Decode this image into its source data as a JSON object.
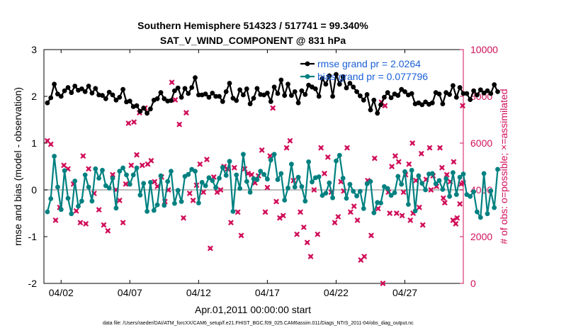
{
  "chart_data": {
    "type": "line",
    "title_line1": "Southern Hemisphere 514323 / 517741 = 99.340%",
    "title_line2": "SAT_V_WIND_COMPONENT @ 831 hPa",
    "xlabel": "Apr.01,2011 00:00:00 start",
    "ylabel_left": "rmse and bias (model - observation)",
    "ylabel_right": "# of obs: o=possible; ×=assimilated",
    "footer": "data file: /Users/raeder/DAI/ATM_forcXX/CAM6_setup/f.e21.FHIST_BGC.f09_025.CAM6assim.011/Diags_NTrS_2011-04/obs_diag_output.nc",
    "x_ticks": [
      "04/02",
      "04/07",
      "04/12",
      "04/17",
      "04/22",
      "04/27"
    ],
    "x_tick_days": [
      2,
      7,
      12,
      17,
      22,
      27
    ],
    "xlim_days": [
      0.75,
      31.25
    ],
    "ylim_left": [
      -2,
      3
    ],
    "yticks_left": [
      "3",
      "2",
      "1",
      "0",
      "-1",
      "-2"
    ],
    "yticks_left_values": [
      3,
      2,
      1,
      0,
      -1,
      -2
    ],
    "ylim_right": [
      0,
      10000
    ],
    "yticks_right": [
      "10000",
      "8000",
      "6000",
      "4000",
      "2000",
      "0"
    ],
    "yticks_right_values": [
      10000,
      8000,
      6000,
      4000,
      2000,
      0
    ],
    "step_days": 0.25,
    "start_day": 1.0,
    "colors": {
      "rmse": "#000000",
      "bias": "#008080",
      "obs": "#d0105a",
      "zero": "#bbbbbb",
      "legend_text": "#1a5fd6"
    },
    "legend": [
      {
        "name": "rmse grand pr = 2.0264",
        "series": "rmse"
      },
      {
        "name": "bias grand pr = 0.077796",
        "series": "bias"
      }
    ],
    "series": [
      {
        "name": "rmse",
        "values": [
          1.86,
          1.97,
          2.26,
          2.05,
          2.0,
          2.12,
          2.19,
          2.08,
          2.22,
          2.13,
          2.16,
          2.1,
          2.22,
          2.07,
          2.17,
          2.03,
          2.02,
          1.95,
          2.09,
          2.03,
          1.92,
          1.98,
          2.15,
          1.88,
          1.9,
          1.78,
          1.8,
          1.68,
          1.75,
          1.64,
          1.73,
          1.92,
          1.95,
          2.08,
          1.95,
          1.9,
          1.91,
          2.12,
          2.18,
          1.98,
          2.17,
          2.06,
          2.19,
          2.4,
          2.03,
          2.03,
          2.05,
          1.98,
          2.07,
          2.0,
          2.0,
          1.89,
          2.1,
          2.28,
          1.96,
          1.91,
          2.14,
          2.03,
          2.16,
          1.84,
          1.96,
          2.17,
          2.04,
          2.03,
          2.07,
          1.89,
          2.2,
          2.06,
          2.35,
          2.02,
          2.26,
          2.02,
          2.1,
          1.86,
          2.12,
          2.04,
          2.24,
          2.2,
          2.16,
          2.0,
          2.38,
          2.26,
          2.44,
          2.0,
          2.47,
          2.26,
          2.42,
          2.18,
          2.28,
          2.2,
          2.1,
          2.01,
          1.92,
          2.04,
          1.71,
          1.92,
          1.64,
          1.82,
          1.98,
          2.08,
          1.97,
          2.05,
          2.02,
          2.15,
          2.1,
          2.03,
          2.06,
          1.84,
          1.86,
          1.82,
          1.88,
          1.83,
          1.86,
          2.08,
          2.05,
          1.84,
          2.08,
          2.04,
          2.23,
          1.98,
          2.19,
          2.06,
          2.06,
          1.93,
          2.12,
          2.03,
          2.14,
          2.07,
          2.12,
          2.06,
          2.25,
          2.1
        ]
      },
      {
        "name": "bias",
        "values": [
          -0.47,
          -0.19,
          0.72,
          0.06,
          -0.42,
          0.41,
          -0.18,
          -0.51,
          0.19,
          -0.35,
          -0.24,
          0.32,
          0.06,
          -0.24,
          0.45,
          0.25,
          0.42,
          0.09,
          0.04,
          0.25,
          -0.39,
          0.4,
          0.47,
          0.32,
          0.12,
          0.32,
          0.47,
          -0.11,
          0.14,
          -0.46,
          0.16,
          -0.44,
          -0.32,
          0.3,
          -0.33,
          0.18,
          0.4,
          -0.29,
          -0.01,
          -0.25,
          0.29,
          0.33,
          0.44,
          0.4,
          -0.28,
          0.16,
          0.09,
          0.26,
          0.2,
          0.05,
          0.25,
          0.48,
          0.31,
          0.61,
          -0.46,
          0.32,
          0.03,
          0.76,
          0.18,
          -0.05,
          0.24,
          0.22,
          0.4,
          0.33,
          0.23,
          0.64,
          0.76,
          0.22,
          0.35,
          -0.22,
          0.04,
          0.55,
          0.06,
          0.27,
          0.07,
          -0.24,
          0.6,
          0.17,
          0.26,
          0.28,
          -0.12,
          -0.07,
          0.15,
          -0.17,
          0.62,
          0.74,
          0.25,
          -0.18,
          0.12,
          -0.03,
          -0.13,
          -0.03,
          -0.4,
          0.13,
          0.18,
          -0.49,
          -0.27,
          -0.28,
          0.07,
          0.03,
          -0.12,
          -0.06,
          0.29,
          0.12,
          0.39,
          -0.31,
          0.42,
          -0.45,
          0.3,
          0.14,
          0.0,
          0.34,
          0.35,
          0.13,
          0.2,
          0.01,
          0.24,
          -0.14,
          0.37,
          -0.1,
          0.27,
          0.34,
          -0.1,
          -0.14,
          -0.04,
          -0.47,
          -0.59,
          0.35,
          -0.51,
          -0.02,
          -0.38,
          0.44
        ]
      }
    ],
    "obs_assimilated": [
      6100,
      5950,
      2700,
      3250,
      5050,
      4900,
      4250,
      3100,
      2600,
      5450,
      2550,
      4900,
      3850,
      3150,
      2500,
      2250,
      4650,
      4000,
      3550,
      2600,
      4250,
      6850,
      5050,
      6900,
      5500,
      7300,
      5050,
      7500,
      5100,
      5250,
      4350,
      4150,
      4550,
      3500,
      4000,
      8600,
      7850,
      6800,
      2800,
      7300,
      3850,
      3550,
      4200,
      5100,
      3900,
      5300,
      1500,
      4550,
      3900,
      4000,
      5000,
      4900,
      2600,
      4950,
      3050,
      2050,
      4900,
      4700,
      4650,
      4300,
      4600,
      5700,
      3050,
      4100,
      5450,
      7500,
      3500,
      2800,
      2900,
      5800,
      6100,
      4400,
      2100,
      3050,
      2400,
      1750,
      1150,
      4000,
      2100,
      5800,
      4700,
      5400,
      3900,
      2600,
      2850,
      4350,
      3950,
      5800,
      3050,
      3300,
      2700,
      1000,
      1150,
      4400,
      2050,
      5350,
      3200,
      7750,
      7600,
      3900,
      5000,
      5450,
      5200,
      2900,
      4650,
      5100,
      6000,
      4400,
      3250,
      2500,
      4450,
      5800,
      4600,
      4150,
      5800,
      3650,
      4650,
      4350,
      5200,
      2800,
      3400,
      4250,
      7600,
      4300,
      2700,
      2550,
      4950,
      3450,
      4000,
      5550,
      3000,
      2700,
      3900,
      3000,
      3000,
      0
    ],
    "obs_assimilated_days": [
      1.0,
      1.25,
      1.6,
      1.9,
      2.2,
      2.5,
      2.9,
      3.1,
      3.4,
      3.6,
      3.8,
      4.0,
      4.4,
      4.75,
      5.1,
      5.4,
      5.75,
      6.0,
      6.25,
      6.5,
      6.7,
      6.9,
      7.1,
      7.3,
      7.5,
      7.7,
      7.9,
      8.1,
      8.3,
      8.55,
      8.8,
      9.0,
      9.3,
      9.55,
      9.8,
      10.05,
      10.3,
      10.6,
      10.9,
      11.1,
      11.35,
      11.6,
      11.85,
      12.1,
      12.35,
      12.6,
      12.85,
      13.1,
      13.35,
      13.6,
      13.85,
      14.1,
      14.35,
      14.6,
      14.85,
      15.1,
      15.35,
      15.6,
      15.85,
      16.1,
      16.35,
      16.6,
      16.85,
      17.0,
      17.2,
      17.4,
      17.65,
      17.9,
      18.15,
      18.4,
      18.65,
      18.9,
      19.15,
      19.4,
      19.65,
      19.9,
      20.15,
      20.4,
      20.65,
      20.9,
      21.15,
      21.4,
      21.65,
      21.9,
      22.15,
      22.35,
      22.55,
      22.8,
      23.05,
      23.3,
      23.55,
      23.8,
      24.05,
      24.3,
      24.55,
      24.8,
      25.05,
      25.3,
      25.55,
      25.8,
      26.05,
      26.3,
      26.55,
      26.8,
      27.05,
      27.3,
      27.55,
      27.8,
      28.05,
      28.3,
      28.55,
      28.8,
      29.05,
      29.3,
      29.55,
      29.8,
      30.05,
      30.3,
      30.55,
      30.8,
      31.0,
      31.1,
      31.2,
      31.25,
      30.5,
      30.7,
      29.7,
      29.9,
      28.9,
      28.2,
      27.6,
      27.4,
      26.9,
      26.4,
      25.9,
      25.4
    ]
  }
}
